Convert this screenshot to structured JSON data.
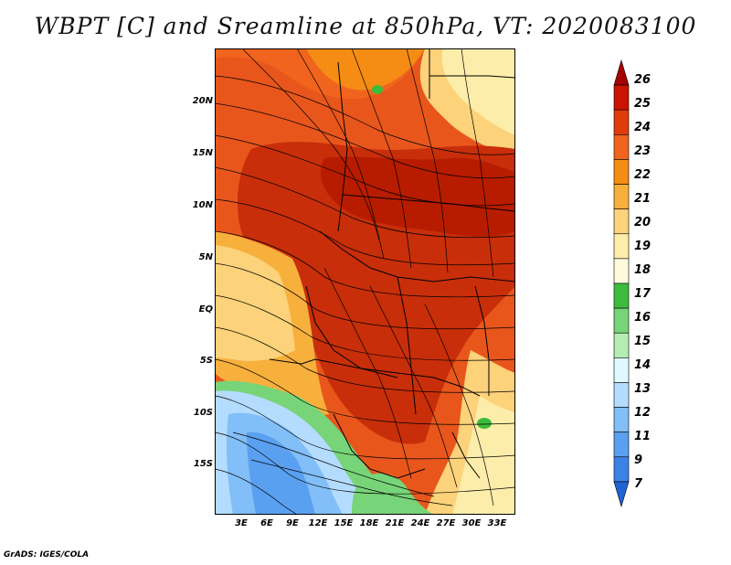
{
  "title": "WBPT [C] and Sreamline at 850hPa, VT: 2020083100",
  "footer": "GrADS: IGES/COLA",
  "map": {
    "variable": "Wet-bulb potential temperature",
    "units": "C",
    "level": "850hPa",
    "lat_labels": [
      "20N",
      "15N",
      "10N",
      "5N",
      "EQ",
      "5S",
      "10S",
      "15S"
    ],
    "lon_labels": [
      "3E",
      "6E",
      "9E",
      "12E",
      "15E",
      "18E",
      "21E",
      "24E",
      "27E",
      "30E",
      "33E"
    ],
    "lat_range": [
      -20,
      24.5
    ],
    "lon_range": [
      0,
      35
    ]
  },
  "colorbar": {
    "labels": [
      "26",
      "25",
      "24",
      "23",
      "22",
      "21",
      "20",
      "19",
      "18",
      "17",
      "16",
      "15",
      "14",
      "13",
      "12",
      "11",
      "9",
      "7"
    ],
    "colors": [
      "#a50000",
      "#c81400",
      "#e03c0a",
      "#f0641e",
      "#f58c14",
      "#f8b03c",
      "#fcd27a",
      "#fdedaa",
      "#fffadc",
      "#3cbc3c",
      "#78d478",
      "#b4ecb4",
      "#e0f8ff",
      "#b4dcff",
      "#82bef8",
      "#5aa0f0",
      "#3c82e6",
      "#1e64d2"
    ]
  }
}
